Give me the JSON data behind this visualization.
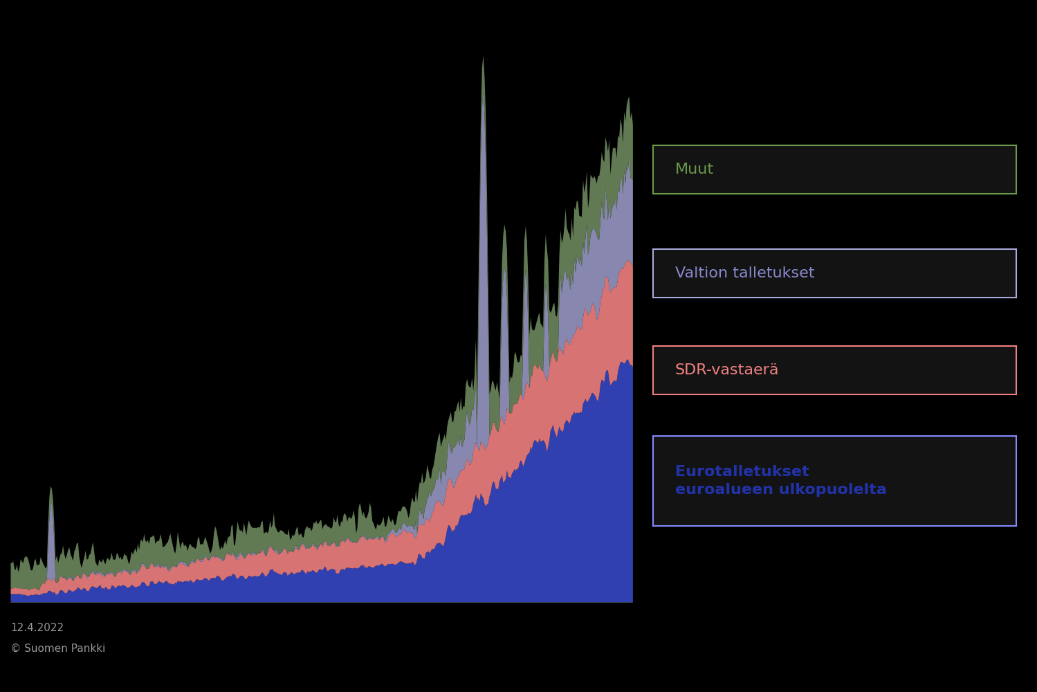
{
  "background_color": "#000000",
  "plot_bg_color": "#000000",
  "colors": {
    "euro_deposits": "#3344bb",
    "sdr": "#f08080",
    "state_deposits": "#aaaadd",
    "other": "#7a9a6a"
  },
  "legend": {
    "muut": "Muut",
    "valtion": "Valtion talletukset",
    "sdr": "SDR-vastaerä",
    "euro": "Eurotalletukset\neuroalueen ulkopuolelta"
  },
  "legend_colors": {
    "muut_text": "#6a9a4a",
    "muut_box": "#6a9a4a",
    "valtion_text": "#8888cc",
    "valtion_box": "#aaaadd",
    "sdr_text": "#f08080",
    "sdr_box": "#f08080",
    "euro_text": "#2233aa",
    "euro_box": "#8888ff"
  },
  "footer_date": "12.4.2022",
  "footer_copy": "© Suomen Pankki",
  "n_points": 500,
  "seed": 42
}
